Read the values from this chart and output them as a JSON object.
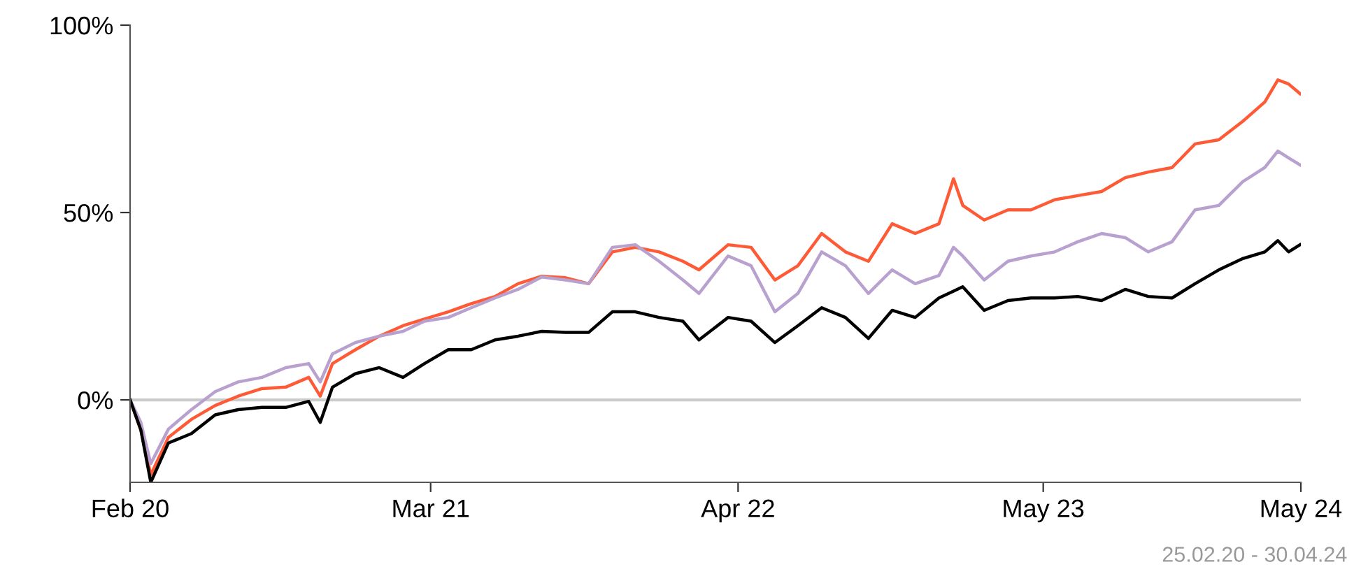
{
  "chart_data": {
    "type": "line",
    "x": [
      "2020-02-25",
      "2020-03-10",
      "2020-03-23",
      "2020-04-15",
      "2020-05-15",
      "2020-06-15",
      "2020-07-15",
      "2020-08-15",
      "2020-09-15",
      "2020-10-15",
      "2020-10-30",
      "2020-11-15",
      "2020-12-15",
      "2021-01-15",
      "2021-02-15",
      "2021-03-15",
      "2021-04-15",
      "2021-05-15",
      "2021-06-15",
      "2021-07-15",
      "2021-08-15",
      "2021-09-15",
      "2021-10-15",
      "2021-11-15",
      "2021-12-15",
      "2022-01-15",
      "2022-02-15",
      "2022-03-08",
      "2022-04-15",
      "2022-05-15",
      "2022-06-15",
      "2022-07-15",
      "2022-08-15",
      "2022-09-15",
      "2022-10-15",
      "2022-11-15",
      "2022-12-15",
      "2023-01-15",
      "2023-02-03",
      "2023-02-15",
      "2023-03-15",
      "2023-04-15",
      "2023-05-15",
      "2023-06-15",
      "2023-07-15",
      "2023-08-15",
      "2023-09-15",
      "2023-10-15",
      "2023-11-15",
      "2023-12-15",
      "2024-01-15",
      "2024-02-15",
      "2024-03-15",
      "2024-04-01",
      "2024-04-15",
      "2024-04-30"
    ],
    "series": [
      {
        "color": "#ff5a36",
        "values": [
          0,
          -8,
          -20,
          -10,
          -5.2,
          -1.5,
          1,
          3,
          3.4,
          6,
          1,
          9.7,
          13.4,
          17,
          19.8,
          21.6,
          23.5,
          25.7,
          27.6,
          31,
          33,
          32.6,
          31,
          39.5,
          40.7,
          39.5,
          37,
          34.7,
          41.4,
          40.7,
          32,
          35.8,
          44.4,
          39.5,
          37,
          47,
          44.4,
          47,
          59,
          51.9,
          48,
          50.7,
          50.7,
          53.4,
          54.5,
          55.6,
          59.3,
          60.8,
          62,
          68.3,
          69.4,
          74.3,
          79.5,
          85.4,
          84.3,
          81.7
        ]
      },
      {
        "color": "#b8a0cf",
        "values": [
          0,
          -6,
          -17,
          -7.8,
          -2.6,
          2.2,
          4.8,
          6,
          8.6,
          9.7,
          4.8,
          12.3,
          15.3,
          17,
          18.3,
          21,
          22,
          24.6,
          27.2,
          29.5,
          32.8,
          32,
          31,
          40.7,
          41.4,
          37,
          32,
          28.4,
          38.4,
          35.8,
          23.5,
          28.4,
          39.5,
          35.8,
          28.4,
          34.7,
          31,
          33.2,
          40.7,
          38.4,
          32,
          37,
          38.4,
          39.5,
          42.2,
          44.4,
          43.3,
          39.5,
          42.2,
          50.7,
          51.9,
          58.2,
          62,
          66.4,
          64.6,
          62.7
        ]
      },
      {
        "color": "#000000",
        "values": [
          0,
          -8,
          -22,
          -11.5,
          -9,
          -4,
          -2.6,
          -2,
          -2,
          -0.4,
          -6,
          3.4,
          7,
          8.6,
          6,
          9.7,
          13.4,
          13.4,
          16,
          17,
          18.3,
          18,
          18,
          23.5,
          23.5,
          22,
          21,
          16,
          22,
          21,
          15.3,
          19.8,
          24.6,
          22,
          16.4,
          23.9,
          22,
          27.2,
          29,
          30.2,
          23.9,
          26.5,
          27.2,
          27.2,
          27.6,
          26.5,
          29.5,
          27.6,
          27.2,
          31,
          34.7,
          37.7,
          39.5,
          42.5,
          39.5,
          41.4
        ]
      }
    ],
    "xlim": [
      "2020-02-25",
      "2024-05-01"
    ],
    "xticks": [
      {
        "value": "2020-02-25",
        "label": "Feb 20"
      },
      {
        "value": "2021-03-23",
        "label": "Mar 21"
      },
      {
        "value": "2022-04-28",
        "label": "Apr 22"
      },
      {
        "value": "2023-05-31",
        "label": "May 23"
      },
      {
        "value": "2024-05-01",
        "label": "May 24"
      }
    ],
    "ylim": [
      -22,
      100
    ],
    "yticks": [
      {
        "value": 0,
        "label": "0%"
      },
      {
        "value": 50,
        "label": "50%"
      },
      {
        "value": 100,
        "label": "100%"
      }
    ],
    "ref_lines": [
      {
        "axis": "y",
        "value": 0,
        "color": "#cccccc"
      }
    ],
    "annotations": [
      "25.02.20 - 30.04.24"
    ],
    "grid": false,
    "legend": false
  }
}
